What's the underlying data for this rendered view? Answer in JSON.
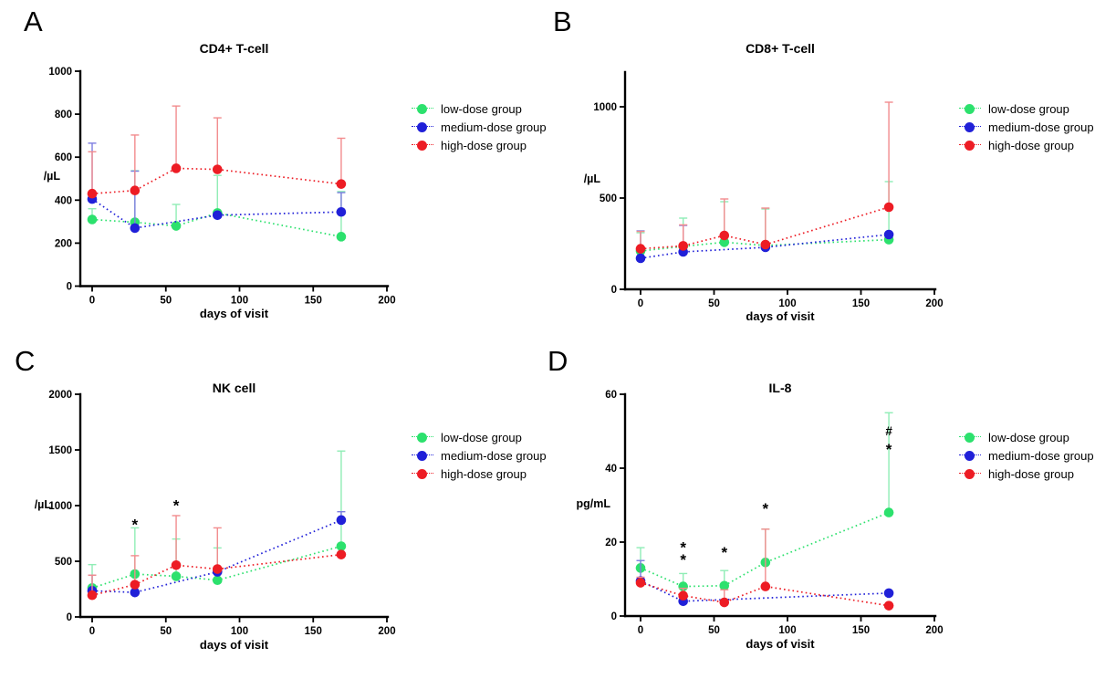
{
  "figure_background": "#ffffff",
  "groups": [
    {
      "name": "low-dose group",
      "color": "#2ce16d",
      "err_color": "#8fedb5"
    },
    {
      "name": "medium-dose group",
      "color": "#2020d8",
      "err_color": "#7d7de0"
    },
    {
      "name": "high-dose group",
      "color": "#ed1c24",
      "err_color": "#f28b8d"
    }
  ],
  "chart_data": [
    {
      "type": "line",
      "panel_label": "A",
      "title": "CD4+ T-cell",
      "xlabel": "days of visit",
      "ylabel": "/µL",
      "x_ticks": [
        0,
        50,
        100,
        150,
        200
      ],
      "y_ticks": [
        0,
        200,
        400,
        600,
        800,
        1000
      ],
      "y_axis_max": 1000,
      "x_axis_max": 200,
      "legend_position": "right",
      "grid": false,
      "series": [
        {
          "name": "low-dose group",
          "x": [
            0,
            29,
            57,
            85,
            169
          ],
          "y": [
            310,
            297,
            280,
            340,
            230
          ],
          "err_up": [
            50,
            240,
            100,
            175,
            210
          ]
        },
        {
          "name": "medium-dose group",
          "x": [
            0,
            29,
            85,
            169
          ],
          "y": [
            405,
            270,
            330,
            345
          ],
          "err_up": [
            260,
            265,
            0,
            90
          ]
        },
        {
          "name": "high-dose group",
          "x": [
            0,
            29,
            57,
            85,
            169
          ],
          "y": [
            430,
            445,
            548,
            543,
            475
          ],
          "err_up": [
            195,
            258,
            290,
            240,
            213
          ]
        }
      ],
      "annotations": []
    },
    {
      "type": "line",
      "panel_label": "B",
      "title": "CD8+ T-cell",
      "xlabel": "days of visit",
      "ylabel": "/µL",
      "x_ticks": [
        0,
        50,
        100,
        150,
        200
      ],
      "y_ticks": [
        0,
        500,
        1000
      ],
      "y_axis_max": 1190,
      "x_axis_max": 200,
      "legend_position": "right",
      "grid": false,
      "series": [
        {
          "name": "low-dose group",
          "x": [
            0,
            29,
            57,
            85,
            169
          ],
          "y": [
            210,
            235,
            258,
            240,
            272
          ],
          "err_up": [
            100,
            155,
            222,
            200,
            318
          ]
        },
        {
          "name": "medium-dose group",
          "x": [
            0,
            29,
            85,
            169
          ],
          "y": [
            170,
            205,
            230,
            300
          ],
          "err_up": [
            150,
            145,
            0,
            0
          ]
        },
        {
          "name": "high-dose group",
          "x": [
            0,
            29,
            57,
            85,
            169
          ],
          "y": [
            222,
            238,
            295,
            245,
            450
          ],
          "err_up": [
            95,
            115,
            200,
            200,
            575
          ]
        }
      ],
      "annotations": []
    },
    {
      "type": "line",
      "panel_label": "C",
      "title": "NK cell",
      "xlabel": "days of visit",
      "ylabel": "/µL",
      "x_ticks": [
        0,
        50,
        100,
        150,
        200
      ],
      "y_ticks": [
        0,
        500,
        1000,
        1500,
        2000
      ],
      "y_axis_max": 2000,
      "x_axis_max": 200,
      "legend_position": "right",
      "grid": false,
      "series": [
        {
          "name": "low-dose group",
          "x": [
            0,
            29,
            57,
            85,
            169
          ],
          "y": [
            260,
            385,
            365,
            330,
            635
          ],
          "err_up": [
            210,
            415,
            335,
            290,
            855
          ]
        },
        {
          "name": "medium-dose group",
          "x": [
            0,
            29,
            85,
            169
          ],
          "y": [
            235,
            220,
            405,
            870
          ],
          "err_up": [
            140,
            0,
            0,
            75
          ]
        },
        {
          "name": "high-dose group",
          "x": [
            0,
            29,
            57,
            85,
            169
          ],
          "y": [
            195,
            290,
            465,
            430,
            560
          ],
          "err_up": [
            180,
            260,
            445,
            370,
            0
          ]
        }
      ],
      "annotations": [
        {
          "x": 29,
          "y": 845,
          "text": "*",
          "color": "#1a7a2e"
        },
        {
          "x": 57,
          "y": 1015,
          "text": "*",
          "color": "#ed1c24"
        }
      ]
    },
    {
      "type": "line",
      "panel_label": "D",
      "title": "IL-8",
      "xlabel": "days of visit",
      "ylabel": "pg/mL",
      "x_ticks": [
        0,
        50,
        100,
        150,
        200
      ],
      "y_ticks": [
        0,
        20,
        40,
        60
      ],
      "y_axis_max": 60,
      "x_axis_max": 200,
      "legend_position": "right",
      "grid": false,
      "series": [
        {
          "name": "low-dose group",
          "x": [
            0,
            29,
            57,
            85,
            169
          ],
          "y": [
            13,
            8,
            8.2,
            14.5,
            28
          ],
          "err_up": [
            5.5,
            3.5,
            4.1,
            9,
            27
          ]
        },
        {
          "name": "medium-dose group",
          "x": [
            0,
            29,
            169
          ],
          "y": [
            9.5,
            4,
            6.2
          ],
          "err_up": [
            5.5,
            0,
            0
          ]
        },
        {
          "name": "high-dose group",
          "x": [
            0,
            29,
            57,
            85,
            169
          ],
          "y": [
            9,
            5.5,
            3.7,
            8,
            2.8
          ],
          "err_up": [
            1.5,
            2,
            3.4,
            15.5,
            0
          ]
        }
      ],
      "annotations": [
        {
          "x": 29,
          "y": 19,
          "text": "*",
          "color": "#1a7a2e"
        },
        {
          "x": 29,
          "y": 15.7,
          "text": "*",
          "color": "#ed1c24"
        },
        {
          "x": 57,
          "y": 17.7,
          "text": "*",
          "color": "#ed1c24"
        },
        {
          "x": 85,
          "y": 29.5,
          "text": "*",
          "color": "#ed1c24"
        },
        {
          "x": 169,
          "y": 50,
          "text": "#",
          "color": "#000000"
        },
        {
          "x": 169,
          "y": 45.5,
          "text": "*",
          "color": "#ed1c24"
        }
      ]
    }
  ]
}
